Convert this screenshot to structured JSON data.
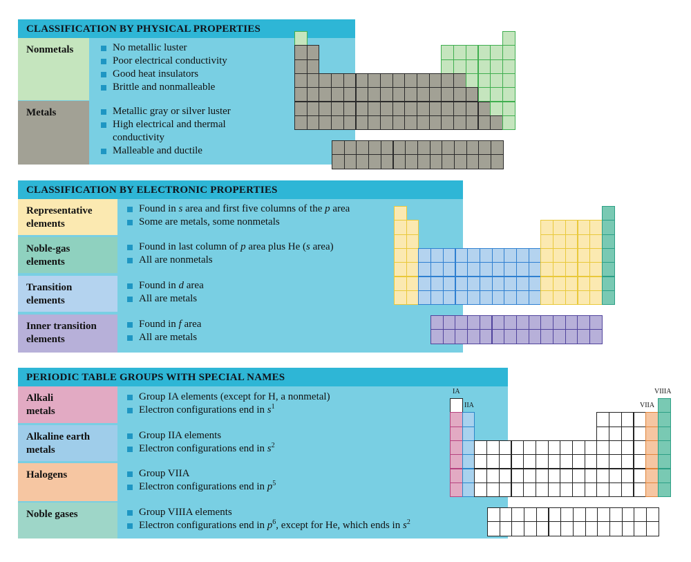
{
  "sections": [
    {
      "title": "CLASSIFICATION BY PHYSICAL PROPERTIES",
      "rows": [
        {
          "label_lines": [
            "Nonmetals"
          ],
          "color": "#c5e5be",
          "bullets": [
            "No metallic luster",
            "Poor electrical conductivity",
            "Good heat insulators",
            "Brittle and nonmalleable"
          ]
        },
        {
          "label_lines": [
            "Metals"
          ],
          "color": "#a2a195",
          "bullets": [
            "Metallic gray or silver luster",
            "High electrical and thermal conductivity",
            "Malleable and ductile"
          ]
        }
      ]
    },
    {
      "title": "CLASSIFICATION BY ELECTRONIC PROPERTIES",
      "rows": [
        {
          "label_lines": [
            "Representative",
            "elements"
          ],
          "color": "#fbe9b1",
          "bullets": [
            "Found in <i>s</i> area and first five columns of the <i>p</i> area",
            "Some are metals, some nonmetals"
          ]
        },
        {
          "label_lines": [
            "Noble-gas",
            "elements"
          ],
          "color": "#8fd1bf",
          "bullets": [
            "Found in last column of <i>p</i> area plus He (<i>s</i> area)",
            "All are nonmetals"
          ]
        },
        {
          "label_lines": [
            "Transition",
            "elements"
          ],
          "color": "#b4d3ef",
          "bullets": [
            "Found in <i>d</i> area",
            "All are metals"
          ]
        },
        {
          "label_lines": [
            "Inner transition",
            "elements"
          ],
          "color": "#b7b0d9",
          "bullets": [
            "Found in <i>f</i> area",
            "All are metals"
          ]
        }
      ]
    },
    {
      "title": "PERIODIC TABLE GROUPS WITH SPECIAL NAMES",
      "rows": [
        {
          "label_lines": [
            "Alkali",
            "metals"
          ],
          "color": "#e2aac3",
          "bullets": [
            "Group IA elements (except for H, a nonmetal)",
            "Electron configurations end in <i>s</i><sup>1</sup>"
          ]
        },
        {
          "label_lines": [
            "Alkaline earth",
            "metals"
          ],
          "color": "#9fcdea",
          "bullets": [
            "Group IIA elements",
            "Electron configurations end in <i>s</i><sup>2</sup>"
          ]
        },
        {
          "label_lines": [
            "Halogens"
          ],
          "color": "#f6c6a2",
          "bullets": [
            "Group VIIA",
            "Electron configurations end in <i>p</i><sup>5</sup>"
          ]
        },
        {
          "label_lines": [
            "Noble gases"
          ],
          "color": "#9ed6c8",
          "bullets": [
            "Group VIIIA elements",
            "Electron configurations end in <i>p</i><sup>6</sup>, except for He, which ends in <i>s</i><sup>2</sup>"
          ]
        }
      ]
    }
  ],
  "group_labels": [
    "IA",
    "IIA",
    "VIIA",
    "VIIIA"
  ],
  "colors": {
    "banner": "#2eb6d6",
    "panel": "#79cfe3",
    "bullet": "#1e96c3",
    "metal_fill": "#a2a195",
    "nonmetal_fill": "#c5e5be",
    "nonmetal_border": "#3fae4f",
    "s_p_fill": "#fbe9b1",
    "s_p_border": "#e9c83a",
    "noble_fill": "#79c9b3",
    "noble_border": "#2c9f85",
    "d_fill": "#b4d3ef",
    "d_border": "#2e7fd0",
    "f_fill": "#b7b0d9",
    "f_border": "#50439c",
    "alkali_fill": "#e2aac3",
    "alkali_border": "#b5427f",
    "alkaline_fill": "#a8d2ee",
    "alkaline_border": "#2a86c9",
    "halogen_fill": "#f6c6a2",
    "halogen_border": "#e0843a"
  }
}
